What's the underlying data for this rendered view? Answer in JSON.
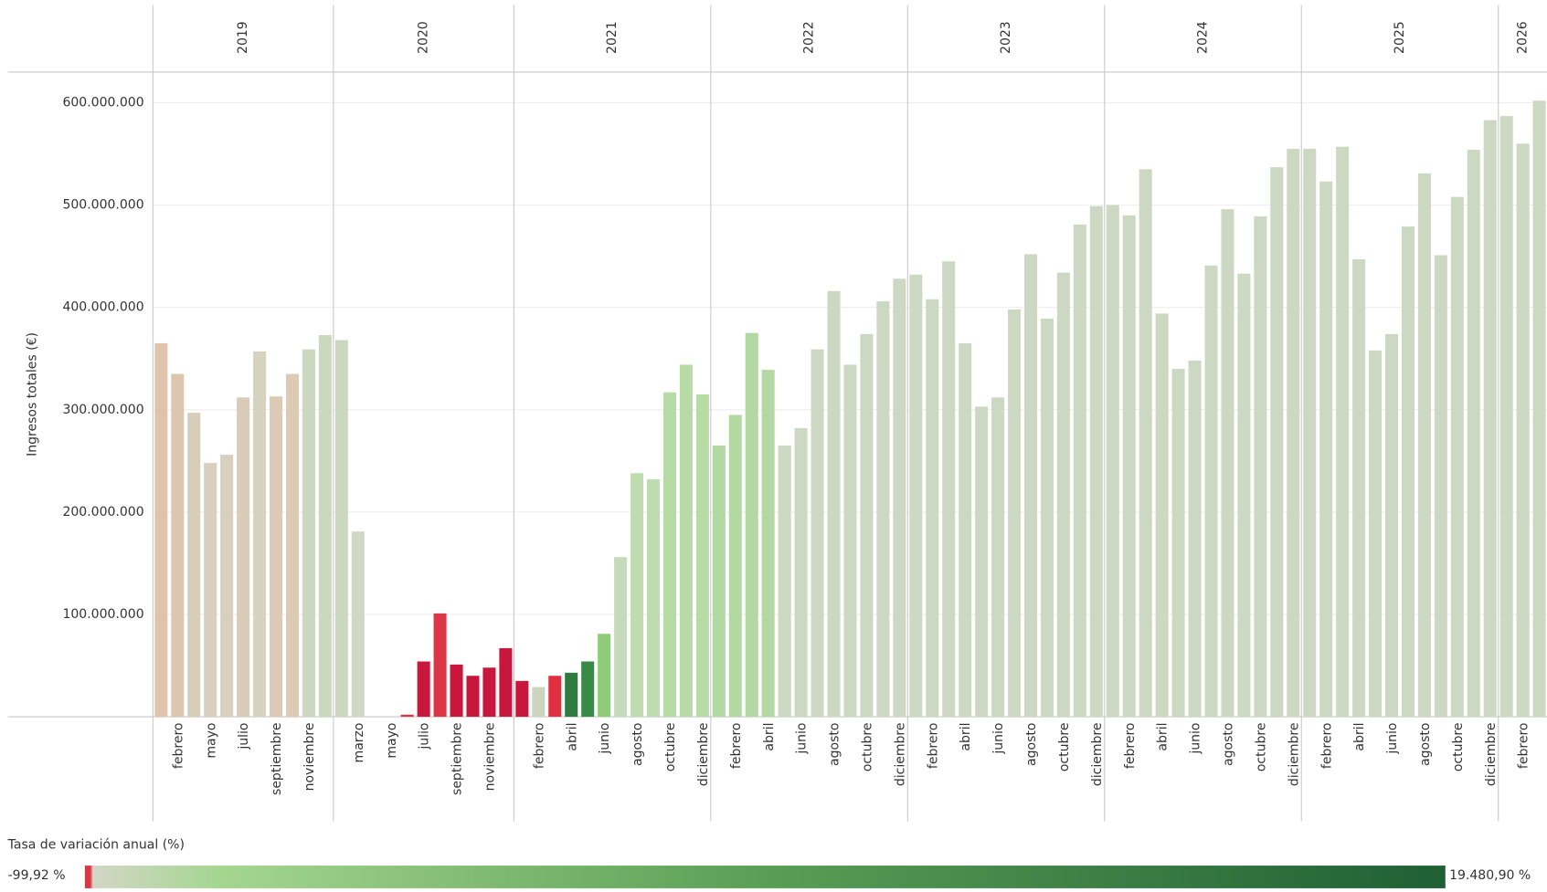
{
  "chart_data": {
    "type": "bar",
    "y_label": "Ingresos totales (€)",
    "ylim": [
      0,
      630000000
    ],
    "yticks": [
      {
        "value": 100000000,
        "label": "100.000.000"
      },
      {
        "value": 200000000,
        "label": "200.000.000"
      },
      {
        "value": 300000000,
        "label": "300.000.000"
      },
      {
        "value": 400000000,
        "label": "400.000.000"
      },
      {
        "value": 500000000,
        "label": "500.000.000"
      },
      {
        "value": 600000000,
        "label": "600.000.000"
      }
    ],
    "grid": true,
    "groups": [
      {
        "name": "2019",
        "categories": [
          null,
          "febrero",
          null,
          "mayo",
          null,
          "julio",
          null,
          "septiembre",
          null,
          "noviembre",
          null
        ],
        "values": [
          365000000,
          335000000,
          297000000,
          248000000,
          256000000,
          312000000,
          357000000,
          313000000,
          335000000,
          359000000,
          373000000
        ],
        "colors": [
          "#dfc3ad",
          "#dcc6b0",
          "#d8cdb9",
          "#d7d0be",
          "#d7d0be",
          "#d8ccb8",
          "#d5d3c0",
          "#dccab4",
          "#dccab4",
          "#ccd7c0",
          "#ccd7c0"
        ]
      },
      {
        "name": "2020",
        "categories": [
          null,
          "marzo",
          null,
          "mayo",
          null,
          "julio",
          null,
          "septiembre",
          null,
          "noviembre",
          null
        ],
        "values": [
          368000000,
          181000000,
          0,
          0,
          2000000,
          54000000,
          101000000,
          51000000,
          40000000,
          48000000,
          67000000
        ],
        "colors": [
          "#ccd7c0",
          "#d0d7c4",
          "#d0d7c4",
          "#d0d7c4",
          "#dc3545",
          "#c8163c",
          "#dc3545",
          "#c8163c",
          "#c8163c",
          "#c8163c",
          "#c8163c"
        ]
      },
      {
        "name": "2021",
        "categories": [
          null,
          "febrero",
          null,
          "abril",
          null,
          "junio",
          null,
          "agosto",
          null,
          "octubre",
          null,
          "diciembre"
        ],
        "values": [
          35000000,
          29000000,
          40000000,
          43000000,
          54000000,
          81000000,
          156000000,
          238000000,
          232000000,
          317000000,
          344000000,
          315000000
        ],
        "colors": [
          "#c8163c",
          "#ccd5be",
          "#e0303f",
          "#2f7a3e",
          "#3a8a47",
          "#8fcc7a",
          "#c5dab8",
          "#bfdcb0",
          "#bfdcb0",
          "#b6dba5",
          "#b6dba5",
          "#b6dba5"
        ]
      },
      {
        "name": "2022",
        "categories": [
          null,
          "febrero",
          null,
          "abril",
          null,
          "junio",
          null,
          "agosto",
          null,
          "octubre",
          null,
          "diciembre"
        ],
        "values": [
          265000000,
          295000000,
          375000000,
          339000000,
          265000000,
          282000000,
          359000000,
          416000000,
          344000000,
          374000000,
          406000000,
          428000000
        ],
        "colors": [
          "#b3d9a3",
          "#b3d9a3",
          "#b3d9a3",
          "#b3d9a3",
          "#cdd8c2",
          "#cdd8c2",
          "#cdd8c2",
          "#cdd8c2",
          "#cdd8c2",
          "#cdd8c2",
          "#cdd8c2",
          "#cdd8c2"
        ]
      },
      {
        "name": "2023",
        "categories": [
          null,
          "febrero",
          null,
          "abril",
          null,
          "junio",
          null,
          "agosto",
          null,
          "octubre",
          null,
          "diciembre"
        ],
        "values": [
          432000000,
          408000000,
          445000000,
          365000000,
          303000000,
          312000000,
          398000000,
          452000000,
          389000000,
          434000000,
          481000000,
          499000000
        ],
        "colors": [
          "#cdd8c2",
          "#cdd8c2",
          "#cdd8c2",
          "#cdd8c2",
          "#cdd8c2",
          "#cdd8c2",
          "#cdd8c2",
          "#cdd8c2",
          "#cdd8c2",
          "#cdd8c2",
          "#cdd8c2",
          "#cdd8c2"
        ]
      },
      {
        "name": "2024",
        "categories": [
          null,
          "febrero",
          null,
          "abril",
          null,
          "junio",
          null,
          "agosto",
          null,
          "octubre",
          null,
          "diciembre"
        ],
        "values": [
          500000000,
          490000000,
          535000000,
          394000000,
          340000000,
          348000000,
          441000000,
          496000000,
          433000000,
          489000000,
          537000000,
          555000000
        ],
        "colors": [
          "#cdd8c2",
          "#cdd8c2",
          "#cdd8c2",
          "#cdd8c2",
          "#cdd8c2",
          "#cdd8c2",
          "#cdd8c2",
          "#cdd8c2",
          "#cdd8c2",
          "#cdd8c2",
          "#cdd8c2",
          "#cdd8c2"
        ]
      },
      {
        "name": "2025",
        "categories": [
          null,
          "febrero",
          null,
          "abril",
          null,
          "junio",
          null,
          "agosto",
          null,
          "octubre",
          null,
          "diciembre"
        ],
        "values": [
          555000000,
          523000000,
          557000000,
          447000000,
          358000000,
          374000000,
          479000000,
          531000000,
          451000000,
          508000000,
          554000000,
          583000000
        ],
        "colors": [
          "#cdd8c2",
          "#cdd8c2",
          "#cdd8c2",
          "#cdd8c2",
          "#cdd8c2",
          "#cdd8c2",
          "#cdd8c2",
          "#cdd8c2",
          "#cdd8c2",
          "#cdd8c2",
          "#cdd8c2",
          "#cdd8c2"
        ]
      },
      {
        "name": "2026",
        "categories": [
          null,
          "febrero",
          null
        ],
        "values": [
          587000000,
          560000000,
          602000000
        ],
        "colors": [
          "#cdd8c2",
          "#cdd8c2",
          "#cdd8c2"
        ]
      }
    ],
    "color_legend": {
      "title": "Tasa de variación anual (%)",
      "min": {
        "value": -99.92,
        "label": "-99,92 %"
      },
      "max": {
        "value": 19480.9,
        "label": "19.480,90 %"
      }
    }
  }
}
